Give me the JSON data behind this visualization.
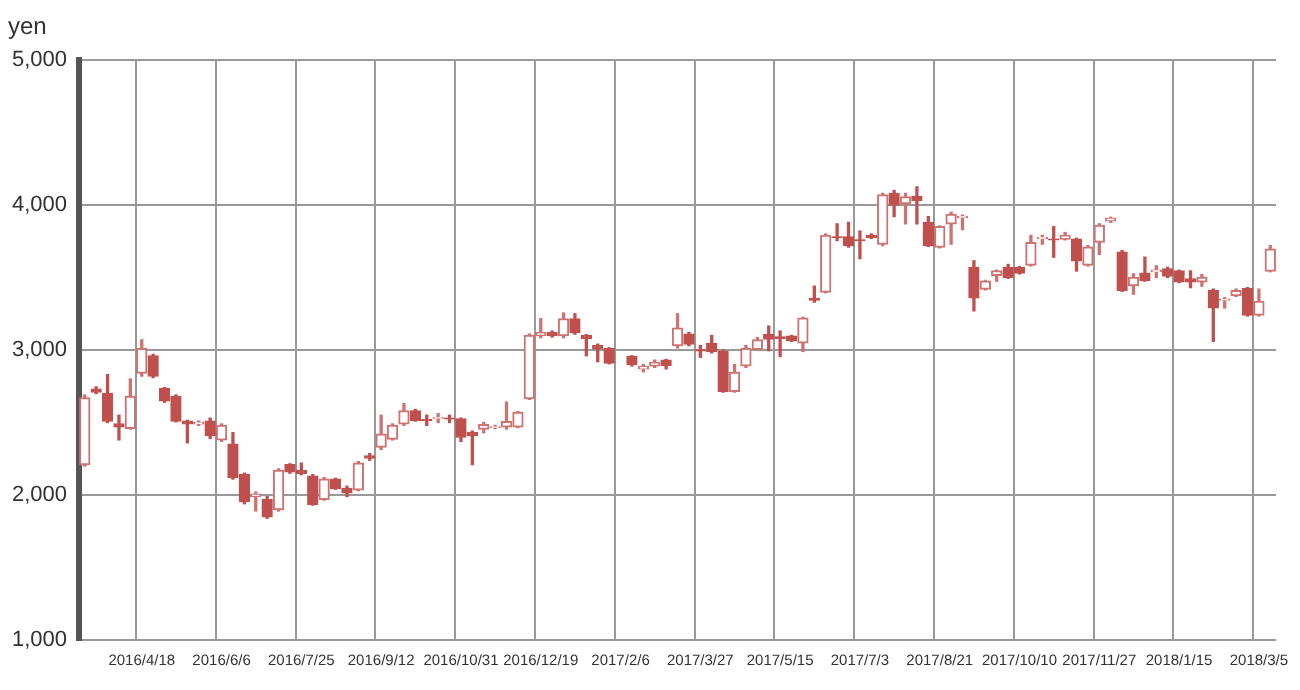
{
  "chart_data": {
    "type": "candlestick",
    "ylabel": "yen",
    "colors": [
      "#cd7371",
      "#c0504d",
      "#c0504d",
      "#c0504d",
      "#cd7371",
      "#cd7371",
      "#c0504d",
      "#c0504d",
      "#c0504d",
      "#c0504d",
      "#cd7371",
      "#c0504d",
      "#cd7371",
      "#c0504d",
      "#c0504d",
      "#cd7371",
      "#c0504d",
      "#cd7371",
      "#c0504d",
      "#c0504d",
      "#c0504d",
      "#cd7371",
      "#c0504d",
      "#c0504d",
      "#cd7371",
      "#c0504d",
      "#cd7371",
      "#cd7371",
      "#cd7371",
      "#c0504d",
      "#c0504d",
      "#cd7371",
      "#c0504d",
      "#c0504d",
      "#c0504d",
      "#cd7371",
      "#cd7371",
      "#cd7371",
      "#cd7371",
      "#cd7371",
      "#cd7371",
      "#c0504d",
      "#cd7371",
      "#c0504d",
      "#c0504d",
      "#c0504d",
      "#c0504d",
      null,
      "#c0504d",
      "#cd7371",
      "#cd7371",
      "#c0504d",
      "#cd7371",
      "#c0504d",
      "#c0504d",
      "#c0504d",
      "#c0504d",
      "#cd7371",
      "#cd7371",
      "#cd7371",
      "#c0504d",
      "#c0504d",
      "#c0504d",
      "#cd7371",
      "#c0504d",
      "#cd7371",
      "#c0504d",
      "#c0504d",
      "#c0504d",
      "#c0504d",
      "#cd7371",
      "#c0504d",
      "#cd7371",
      "#c0504d",
      "#c0504d",
      "#cd7371",
      "#cd7371",
      "#cd7371",
      "#c0504d",
      "#cd7371",
      "#cd7371",
      "#c0504d",
      "#c0504d",
      "#cd7371",
      "#cd7371",
      "#c0504d",
      "#cd7371",
      "#c0504d",
      "#cd7371",
      "#cd7371",
      "#cd7371",
      "#c0504d",
      "#cd7371",
      "#c0504d",
      "#cd7371",
      "#c0504d",
      "#c0504d",
      "#c0504d",
      "#cd7371",
      "#c0504d",
      "#cd7371",
      "#cd7371",
      "#c0504d",
      "#cd7371",
      "#cd7371"
    ],
    "categories": [
      null,
      null,
      null,
      null,
      null,
      "2016/4/18",
      null,
      null,
      null,
      null,
      null,
      null,
      "2016/6/6",
      null,
      null,
      null,
      null,
      null,
      null,
      "2016/7/25",
      null,
      null,
      null,
      null,
      null,
      null,
      "2016/9/12",
      null,
      null,
      null,
      null,
      null,
      null,
      "2016/10/31",
      null,
      null,
      null,
      null,
      null,
      null,
      "2016/12/19",
      null,
      null,
      null,
      null,
      null,
      null,
      "2017/2/6",
      null,
      null,
      null,
      null,
      null,
      null,
      "2017/3/27",
      null,
      null,
      null,
      null,
      null,
      null,
      "2017/5/15",
      null,
      null,
      null,
      null,
      null,
      null,
      "2017/7/3",
      null,
      null,
      null,
      null,
      null,
      null,
      "2017/8/21",
      null,
      null,
      null,
      null,
      null,
      null,
      "2017/10/10",
      null,
      null,
      null,
      null,
      null,
      null,
      "2017/11/27",
      null,
      null,
      null,
      null,
      null,
      null,
      "2018/1/15",
      null,
      null,
      null,
      null,
      null,
      null,
      "2018/3/5",
      null
    ],
    "ohlc": [
      [
        2210,
        2690,
        2200,
        2670
      ],
      [
        2730,
        2745,
        2700,
        2710
      ],
      [
        2700,
        2830,
        2500,
        2510
      ],
      [
        2490,
        2550,
        2380,
        2470
      ],
      [
        2460,
        2800,
        2455,
        2680
      ],
      [
        2840,
        3070,
        2820,
        3010
      ],
      [
        2960,
        2970,
        2810,
        2820
      ],
      [
        2735,
        2740,
        2640,
        2650
      ],
      [
        2680,
        2690,
        2505,
        2510
      ],
      [
        2510,
        2515,
        2360,
        2490
      ],
      [
        2490,
        2510,
        2480,
        2500
      ],
      [
        2510,
        2530,
        2390,
        2410
      ],
      [
        2380,
        2490,
        2370,
        2480
      ],
      [
        2350,
        2430,
        2110,
        2120
      ],
      [
        2140,
        2150,
        1940,
        1955
      ],
      [
        1990,
        2020,
        1890,
        2005
      ],
      [
        1970,
        1990,
        1840,
        1850
      ],
      [
        1900,
        2180,
        1890,
        2170
      ],
      [
        2210,
        2215,
        2150,
        2160
      ],
      [
        2170,
        2220,
        2140,
        2150
      ],
      [
        2130,
        2140,
        1930,
        1935
      ],
      [
        1970,
        2120,
        1965,
        2110
      ],
      [
        2110,
        2115,
        2040,
        2045
      ],
      [
        2045,
        2060,
        1990,
        2015
      ],
      [
        2035,
        2230,
        2030,
        2220
      ],
      [
        2270,
        2285,
        2240,
        2255
      ],
      [
        2330,
        2550,
        2315,
        2420
      ],
      [
        2385,
        2490,
        2380,
        2480
      ],
      [
        2490,
        2630,
        2480,
        2580
      ],
      [
        2580,
        2590,
        2510,
        2515
      ],
      [
        2520,
        2550,
        2480,
        2515
      ],
      [
        2530,
        2560,
        2500,
        2535
      ],
      [
        2530,
        2550,
        2500,
        2525
      ],
      [
        2525,
        2530,
        2370,
        2400
      ],
      [
        2430,
        2440,
        2210,
        2410
      ],
      [
        2455,
        2500,
        2430,
        2485
      ],
      [
        2465,
        2480,
        2460,
        2470
      ],
      [
        2470,
        2640,
        2455,
        2505
      ],
      [
        2470,
        2575,
        2465,
        2570
      ],
      [
        2665,
        3110,
        2660,
        3100
      ],
      [
        3100,
        3215,
        3085,
        3120
      ],
      [
        3120,
        3130,
        3090,
        3100
      ],
      [
        3100,
        3255,
        3085,
        3215
      ],
      [
        3215,
        3250,
        3110,
        3120
      ],
      [
        3100,
        3105,
        2960,
        3080
      ],
      [
        3030,
        3040,
        2920,
        3010
      ],
      [
        3010,
        3015,
        2905,
        2910
      ],
      null,
      [
        2955,
        2960,
        2890,
        2900
      ],
      [
        2870,
        2900,
        2850,
        2885
      ],
      [
        2890,
        2930,
        2880,
        2915
      ],
      [
        2930,
        2935,
        2870,
        2895
      ],
      [
        3030,
        3250,
        3015,
        3150
      ],
      [
        3110,
        3120,
        3030,
        3040
      ],
      [
        3000,
        3030,
        2950,
        2995
      ],
      [
        3045,
        3100,
        2980,
        2990
      ],
      [
        2990,
        3000,
        2710,
        2715
      ],
      [
        2715,
        2900,
        2710,
        2845
      ],
      [
        2890,
        3030,
        2880,
        3010
      ],
      [
        3005,
        3085,
        3000,
        3070
      ],
      [
        3105,
        3165,
        2995,
        3075
      ],
      [
        3090,
        3130,
        2955,
        3080
      ],
      [
        3095,
        3100,
        3060,
        3065
      ],
      [
        3050,
        3225,
        2990,
        3220
      ],
      [
        3355,
        3440,
        3330,
        3345
      ],
      [
        3400,
        3800,
        3395,
        3790
      ],
      [
        3780,
        3870,
        3755,
        3775
      ],
      [
        3780,
        3880,
        3710,
        3720
      ],
      [
        3760,
        3820,
        3630,
        3755
      ],
      [
        3790,
        3800,
        3770,
        3775
      ],
      [
        3730,
        4080,
        3720,
        4070
      ],
      [
        4080,
        4100,
        3920,
        4000
      ],
      [
        4010,
        4080,
        3870,
        4055
      ],
      [
        4060,
        4125,
        3870,
        4030
      ],
      [
        3880,
        3920,
        3715,
        3720
      ],
      [
        3710,
        3855,
        3705,
        3850
      ],
      [
        3870,
        3950,
        3730,
        3935
      ],
      [
        3915,
        3930,
        3830,
        3920
      ],
      [
        3570,
        3615,
        3270,
        3360
      ],
      [
        3420,
        3480,
        3415,
        3475
      ],
      [
        3515,
        3550,
        3475,
        3545
      ],
      [
        3570,
        3590,
        3495,
        3500
      ],
      [
        3570,
        3575,
        3525,
        3530
      ],
      [
        3585,
        3790,
        3580,
        3740
      ],
      [
        3770,
        3790,
        3730,
        3775
      ],
      [
        3765,
        3850,
        3640,
        3760
      ],
      [
        3765,
        3810,
        3760,
        3790
      ],
      [
        3765,
        3770,
        3545,
        3615
      ],
      [
        3585,
        3720,
        3580,
        3710
      ],
      [
        3745,
        3870,
        3660,
        3860
      ],
      [
        3890,
        3915,
        3880,
        3910
      ],
      [
        3675,
        3685,
        3405,
        3410
      ],
      [
        3445,
        3525,
        3385,
        3500
      ],
      [
        3530,
        3640,
        3475,
        3480
      ],
      [
        3540,
        3580,
        3500,
        3550
      ],
      [
        3560,
        3570,
        3500,
        3510
      ],
      [
        3545,
        3550,
        3465,
        3470
      ],
      [
        3490,
        3545,
        3430,
        3470
      ],
      [
        3470,
        3520,
        3440,
        3500
      ],
      [
        3410,
        3420,
        3060,
        3290
      ],
      [
        3345,
        3360,
        3290,
        3350
      ],
      [
        3375,
        3420,
        3370,
        3410
      ],
      [
        3425,
        3430,
        3235,
        3240
      ],
      [
        3240,
        3420,
        3235,
        3335
      ],
      [
        3545,
        3720,
        3540,
        3695
      ]
    ],
    "ylim": [
      1000,
      5000
    ],
    "yticks": [
      {
        "value": 1000,
        "label": "1,000"
      },
      {
        "value": 2000,
        "label": "2,000"
      },
      {
        "value": 3000,
        "label": "3,000"
      },
      {
        "value": 4000,
        "label": "4,000"
      },
      {
        "value": 5000,
        "label": "5,000"
      }
    ],
    "grid": true,
    "legend": false
  }
}
